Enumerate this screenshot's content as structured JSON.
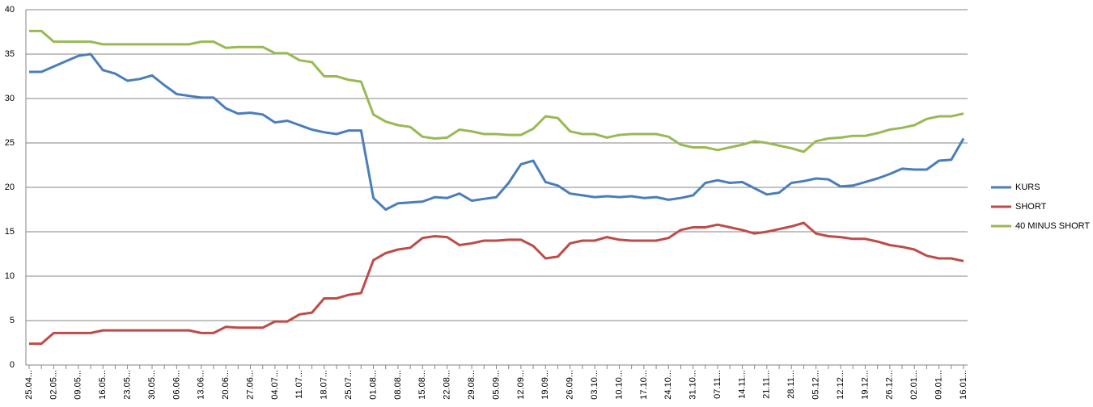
{
  "chart_data": {
    "type": "line",
    "categories": [
      "25.04...",
      null,
      "02.05...",
      null,
      "09.05...",
      null,
      "16.05...",
      null,
      "23.05...",
      null,
      "30.05...",
      null,
      "06.06...",
      null,
      "13.06...",
      null,
      "20.06...",
      null,
      "27.06...",
      null,
      "04.07...",
      null,
      "11.07...",
      null,
      "18.07...",
      null,
      "25.07...",
      null,
      "01.08...",
      null,
      "08.08...",
      null,
      "15.08...",
      null,
      "22.08...",
      null,
      "29.08...",
      null,
      "05.09...",
      null,
      "12.09...",
      null,
      "19.09...",
      null,
      "26.09...",
      null,
      "03.10...",
      null,
      "10.10...",
      null,
      "17.10...",
      null,
      "24.10...",
      null,
      "31.10...",
      null,
      "07.11...",
      null,
      "14.11...",
      null,
      "21.11...",
      null,
      "28.11...",
      null,
      "05.12...",
      null,
      "12.12...",
      null,
      "19.12...",
      null,
      "26.12...",
      null,
      "02.01...",
      null,
      "09.01...",
      null,
      "16.01..."
    ],
    "series": [
      {
        "name": "KURS",
        "color": "#4a7ebb",
        "values": [
          33.0,
          33.0,
          33.6,
          34.2,
          34.8,
          35.0,
          33.2,
          32.8,
          32.0,
          32.2,
          32.6,
          31.5,
          30.5,
          30.3,
          30.1,
          30.1,
          28.9,
          28.3,
          28.4,
          28.2,
          27.3,
          27.5,
          27.0,
          26.5,
          26.2,
          26.0,
          26.4,
          26.4,
          18.8,
          17.5,
          18.2,
          18.3,
          18.4,
          18.9,
          18.8,
          19.3,
          18.5,
          18.7,
          18.9,
          20.5,
          22.6,
          23.0,
          20.6,
          20.2,
          19.3,
          19.1,
          18.9,
          19.0,
          18.9,
          19.0,
          18.8,
          18.9,
          18.6,
          18.8,
          19.1,
          20.5,
          20.8,
          20.5,
          20.6,
          19.9,
          19.2,
          19.4,
          20.5,
          20.7,
          21.0,
          20.9,
          20.1,
          20.2,
          20.6,
          21.0,
          21.5,
          22.1,
          22.0,
          22.0,
          23.0,
          23.1,
          25.5
        ]
      },
      {
        "name": "SHORT",
        "color": "#be4b48",
        "values": [
          2.4,
          2.4,
          3.6,
          3.6,
          3.6,
          3.6,
          3.9,
          3.9,
          3.9,
          3.9,
          3.9,
          3.9,
          3.9,
          3.9,
          3.6,
          3.6,
          4.3,
          4.2,
          4.2,
          4.2,
          4.9,
          4.9,
          5.7,
          5.9,
          7.5,
          7.5,
          7.9,
          8.1,
          11.8,
          12.6,
          13.0,
          13.2,
          14.3,
          14.5,
          14.4,
          13.5,
          13.7,
          14.0,
          14.0,
          14.1,
          14.1,
          13.4,
          12.0,
          12.2,
          13.7,
          14.0,
          14.0,
          14.4,
          14.1,
          14.0,
          14.0,
          14.0,
          14.3,
          15.2,
          15.5,
          15.5,
          15.8,
          15.5,
          15.2,
          14.8,
          15.0,
          15.3,
          15.6,
          16.0,
          14.8,
          14.5,
          14.4,
          14.2,
          14.2,
          13.9,
          13.5,
          13.3,
          13.0,
          12.3,
          12.0,
          12.0,
          11.7
        ]
      },
      {
        "name": "40 MINUS SHORT",
        "color": "#98b954",
        "values": [
          37.6,
          37.6,
          36.4,
          36.4,
          36.4,
          36.4,
          36.1,
          36.1,
          36.1,
          36.1,
          36.1,
          36.1,
          36.1,
          36.1,
          36.4,
          36.4,
          35.7,
          35.8,
          35.8,
          35.8,
          35.1,
          35.1,
          34.3,
          34.1,
          32.5,
          32.5,
          32.1,
          31.9,
          28.2,
          27.4,
          27.0,
          26.8,
          25.7,
          25.5,
          25.6,
          26.5,
          26.3,
          26.0,
          26.0,
          25.9,
          25.9,
          26.6,
          28.0,
          27.8,
          26.3,
          26.0,
          26.0,
          25.6,
          25.9,
          26.0,
          26.0,
          26.0,
          25.7,
          24.8,
          24.5,
          24.5,
          24.2,
          24.5,
          24.8,
          25.2,
          25.0,
          24.7,
          24.4,
          24.0,
          25.2,
          25.5,
          25.6,
          25.8,
          25.8,
          26.1,
          26.5,
          26.7,
          27.0,
          27.7,
          28.0,
          28.0,
          28.3
        ]
      }
    ],
    "ylim": [
      0,
      40
    ],
    "yticks": [
      0,
      5,
      10,
      15,
      20,
      25,
      30,
      35,
      40
    ],
    "grid": true,
    "legend": "right"
  }
}
